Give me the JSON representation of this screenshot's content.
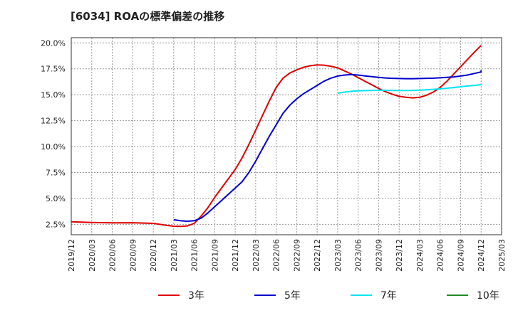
{
  "chart_data": {
    "type": "line",
    "title": "[6034]  ROAの標準偏差の推移",
    "x": [
      "2019/12",
      "2020/03",
      "2020/06",
      "2020/09",
      "2020/12",
      "2021/03",
      "2021/06",
      "2021/09",
      "2021/12",
      "2022/03",
      "2022/06",
      "2022/09",
      "2022/12",
      "2023/03",
      "2023/06",
      "2023/09",
      "2023/12",
      "2024/03",
      "2024/06",
      "2024/09",
      "2024/12",
      "2025/03"
    ],
    "y_ticks": [
      "2.5%",
      "5.0%",
      "7.5%",
      "10.0%",
      "12.5%",
      "15.0%",
      "17.5%",
      "20.0%"
    ],
    "ylim": [
      1.5,
      20.5
    ],
    "grid": true,
    "legend_position": "bottom",
    "series": [
      {
        "name": "3年",
        "color": "#dd0000",
        "points": [
          [
            "2019/12",
            2.75
          ],
          [
            "2020/03",
            2.68
          ],
          [
            "2020/06",
            2.65
          ],
          [
            "2020/09",
            2.66
          ],
          [
            "2020/12",
            2.6
          ],
          [
            "2021/01",
            2.5
          ],
          [
            "2021/02",
            2.4
          ],
          [
            "2021/03",
            2.32
          ],
          [
            "2021/04",
            2.3
          ],
          [
            "2021/05",
            2.35
          ],
          [
            "2021/06",
            2.6
          ],
          [
            "2021/07",
            3.3
          ],
          [
            "2021/08",
            4.1
          ],
          [
            "2021/09",
            5.1
          ],
          [
            "2021/10",
            6.0
          ],
          [
            "2021/11",
            6.9
          ],
          [
            "2021/12",
            7.8
          ],
          [
            "2022/01",
            8.9
          ],
          [
            "2022/02",
            10.2
          ],
          [
            "2022/03",
            11.6
          ],
          [
            "2022/04",
            13.0
          ],
          [
            "2022/05",
            14.4
          ],
          [
            "2022/06",
            15.7
          ],
          [
            "2022/07",
            16.6
          ],
          [
            "2022/08",
            17.1
          ],
          [
            "2022/09",
            17.4
          ],
          [
            "2022/10",
            17.65
          ],
          [
            "2022/11",
            17.8
          ],
          [
            "2022/12",
            17.88
          ],
          [
            "2023/01",
            17.85
          ],
          [
            "2023/02",
            17.75
          ],
          [
            "2023/03",
            17.6
          ],
          [
            "2023/04",
            17.3
          ],
          [
            "2023/05",
            17.0
          ],
          [
            "2023/06",
            16.65
          ],
          [
            "2023/07",
            16.3
          ],
          [
            "2023/08",
            15.95
          ],
          [
            "2023/09",
            15.6
          ],
          [
            "2023/10",
            15.3
          ],
          [
            "2023/11",
            15.05
          ],
          [
            "2023/12",
            14.85
          ],
          [
            "2024/01",
            14.75
          ],
          [
            "2024/02",
            14.7
          ],
          [
            "2024/03",
            14.75
          ],
          [
            "2024/04",
            14.95
          ],
          [
            "2024/05",
            15.25
          ],
          [
            "2024/06",
            15.7
          ],
          [
            "2024/07",
            16.3
          ],
          [
            "2024/08",
            17.0
          ],
          [
            "2024/09",
            17.7
          ],
          [
            "2024/10",
            18.4
          ],
          [
            "2024/11",
            19.1
          ],
          [
            "2024/12",
            19.75
          ]
        ]
      },
      {
        "name": "5年",
        "color": "#0000cc",
        "points": [
          [
            "2021/03",
            2.95
          ],
          [
            "2021/04",
            2.85
          ],
          [
            "2021/05",
            2.8
          ],
          [
            "2021/06",
            2.85
          ],
          [
            "2021/07",
            3.1
          ],
          [
            "2021/08",
            3.6
          ],
          [
            "2021/09",
            4.2
          ],
          [
            "2021/10",
            4.8
          ],
          [
            "2021/11",
            5.4
          ],
          [
            "2021/12",
            6.0
          ],
          [
            "2022/01",
            6.6
          ],
          [
            "2022/02",
            7.5
          ],
          [
            "2022/03",
            8.6
          ],
          [
            "2022/04",
            9.8
          ],
          [
            "2022/05",
            11.0
          ],
          [
            "2022/06",
            12.1
          ],
          [
            "2022/07",
            13.2
          ],
          [
            "2022/08",
            14.0
          ],
          [
            "2022/09",
            14.6
          ],
          [
            "2022/10",
            15.1
          ],
          [
            "2022/11",
            15.5
          ],
          [
            "2022/12",
            15.9
          ],
          [
            "2023/01",
            16.3
          ],
          [
            "2023/02",
            16.6
          ],
          [
            "2023/03",
            16.8
          ],
          [
            "2023/04",
            16.9
          ],
          [
            "2023/05",
            16.95
          ],
          [
            "2023/06",
            16.9
          ],
          [
            "2023/07",
            16.82
          ],
          [
            "2023/08",
            16.75
          ],
          [
            "2023/09",
            16.68
          ],
          [
            "2023/10",
            16.62
          ],
          [
            "2023/11",
            16.58
          ],
          [
            "2023/12",
            16.56
          ],
          [
            "2024/01",
            16.55
          ],
          [
            "2024/02",
            16.55
          ],
          [
            "2024/03",
            16.56
          ],
          [
            "2024/04",
            16.58
          ],
          [
            "2024/05",
            16.6
          ],
          [
            "2024/06",
            16.63
          ],
          [
            "2024/07",
            16.67
          ],
          [
            "2024/08",
            16.72
          ],
          [
            "2024/09",
            16.8
          ],
          [
            "2024/10",
            16.9
          ],
          [
            "2024/11",
            17.05
          ],
          [
            "2024/12",
            17.2
          ],
          [
            "2024/12",
            17.35
          ]
        ]
      },
      {
        "name": "7年",
        "color": "#00e5ee",
        "points": [
          [
            "2023/03",
            15.15
          ],
          [
            "2023/04",
            15.25
          ],
          [
            "2023/05",
            15.33
          ],
          [
            "2023/06",
            15.38
          ],
          [
            "2023/07",
            15.4
          ],
          [
            "2023/08",
            15.42
          ],
          [
            "2023/09",
            15.43
          ],
          [
            "2023/10",
            15.43
          ],
          [
            "2023/11",
            15.42
          ],
          [
            "2023/12",
            15.41
          ],
          [
            "2024/01",
            15.41
          ],
          [
            "2024/02",
            15.42
          ],
          [
            "2024/03",
            15.44
          ],
          [
            "2024/04",
            15.48
          ],
          [
            "2024/05",
            15.52
          ],
          [
            "2024/06",
            15.57
          ],
          [
            "2024/07",
            15.63
          ],
          [
            "2024/08",
            15.7
          ],
          [
            "2024/09",
            15.77
          ],
          [
            "2024/10",
            15.84
          ],
          [
            "2024/11",
            15.9
          ],
          [
            "2024/12",
            15.97
          ]
        ]
      },
      {
        "name": "10年",
        "color": "#228b22",
        "points": []
      }
    ]
  }
}
